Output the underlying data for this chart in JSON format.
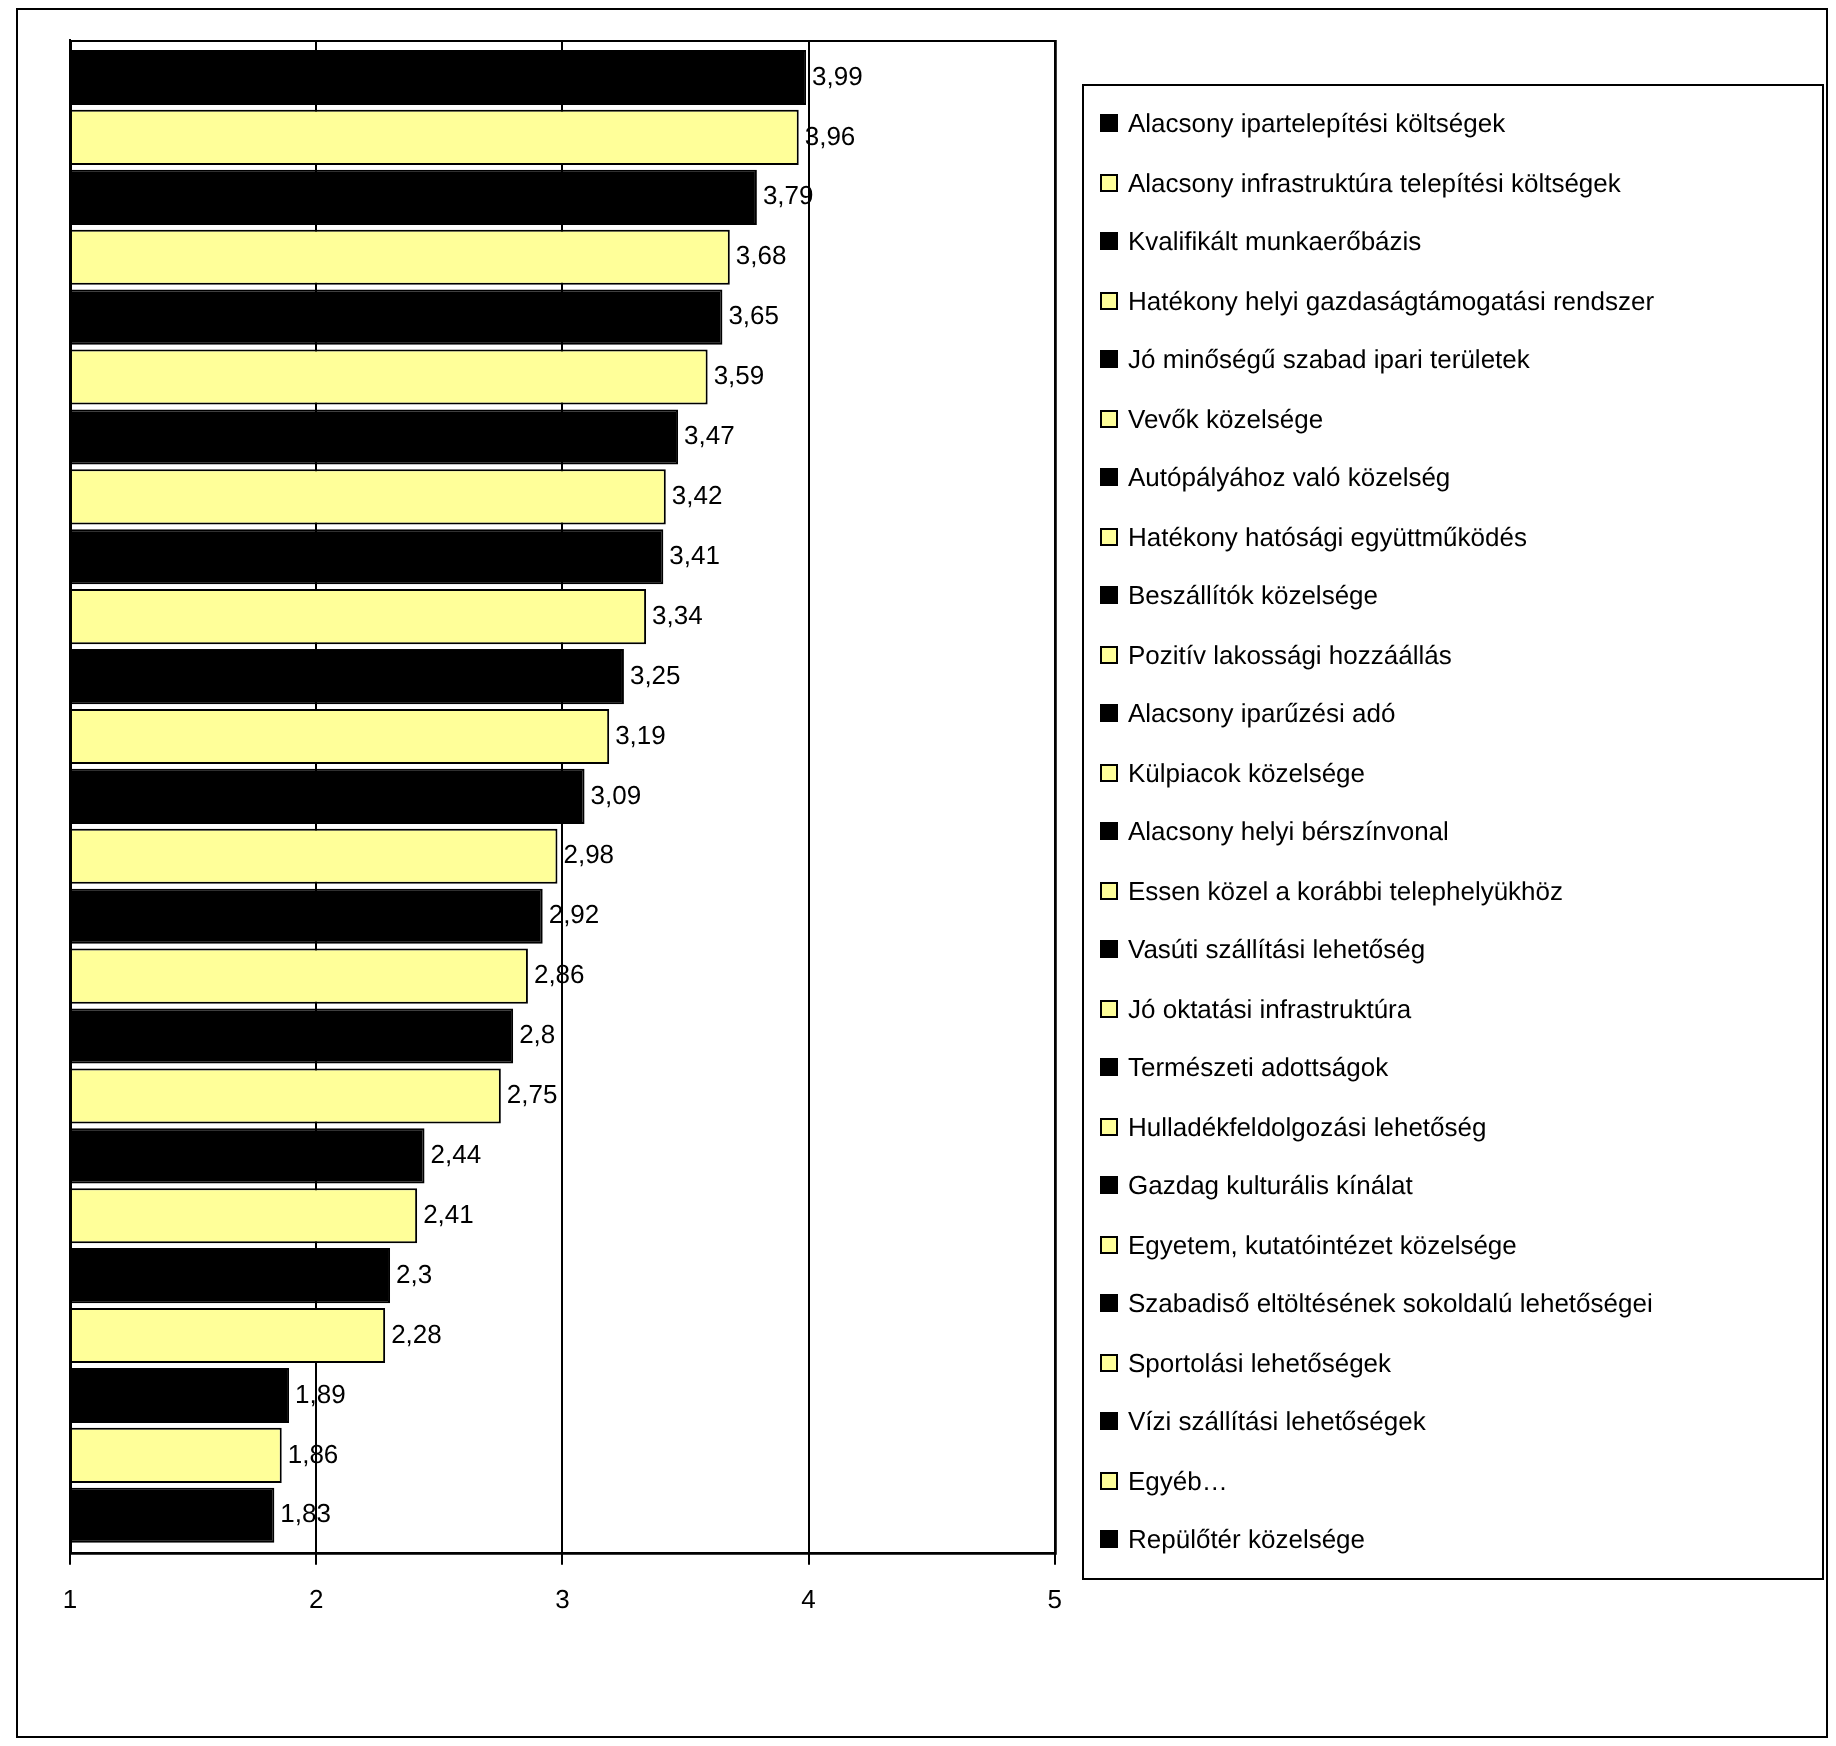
{
  "chart_data": {
    "type": "bar",
    "orientation": "horizontal",
    "categories": [
      null
    ],
    "xlim": [
      1,
      5
    ],
    "xticks": [
      1,
      2,
      3,
      4,
      5
    ],
    "grid": "x",
    "legend": "right",
    "tick_labels": "x",
    "series": [
      {
        "name": "Alacsony ipartelepítési költségek",
        "color": "#000000",
        "values": [
          3.99
        ],
        "value_labels": [
          "3,99"
        ]
      },
      {
        "name": "Alacsony infrastruktúra telepítési költségek",
        "color": "#ffff99",
        "values": [
          3.96
        ],
        "value_labels": [
          "3,96"
        ]
      },
      {
        "name": "Kvalifikált munkaerőbázis",
        "color": "#000000",
        "values": [
          3.79
        ],
        "value_labels": [
          "3,79"
        ]
      },
      {
        "name": "Hatékony helyi gazdaságtámogatási rendszer",
        "color": "#ffff99",
        "values": [
          3.68
        ],
        "value_labels": [
          "3,68"
        ]
      },
      {
        "name": "Jó minőségű szabad ipari területek",
        "color": "#000000",
        "values": [
          3.65
        ],
        "value_labels": [
          "3,65"
        ]
      },
      {
        "name": "Vevők közelsége",
        "color": "#ffff99",
        "values": [
          3.59
        ],
        "value_labels": [
          "3,59"
        ]
      },
      {
        "name": "Autópályához való közelség",
        "color": "#000000",
        "values": [
          3.47
        ],
        "value_labels": [
          "3,47"
        ]
      },
      {
        "name": "Hatékony hatósági együttműködés",
        "color": "#ffff99",
        "values": [
          3.42
        ],
        "value_labels": [
          "3,42"
        ]
      },
      {
        "name": "Beszállítók közelsége",
        "color": "#000000",
        "values": [
          3.41
        ],
        "value_labels": [
          "3,41"
        ]
      },
      {
        "name": "Pozitív lakossági hozzáállás",
        "color": "#ffff99",
        "values": [
          3.34
        ],
        "value_labels": [
          "3,34"
        ]
      },
      {
        "name": "Alacsony iparűzési adó",
        "color": "#000000",
        "values": [
          3.25
        ],
        "value_labels": [
          "3,25"
        ]
      },
      {
        "name": "Külpiacok közelsége",
        "color": "#ffff99",
        "values": [
          3.19
        ],
        "value_labels": [
          "3,19"
        ]
      },
      {
        "name": "Alacsony helyi bérszínvonal",
        "color": "#000000",
        "values": [
          3.09
        ],
        "value_labels": [
          "3,09"
        ]
      },
      {
        "name": "Essen közel a korábbi telephelyükhöz",
        "color": "#ffff99",
        "values": [
          2.98
        ],
        "value_labels": [
          "2,98"
        ]
      },
      {
        "name": "Vasúti szállítási lehetőség",
        "color": "#000000",
        "values": [
          2.92
        ],
        "value_labels": [
          "2,92"
        ]
      },
      {
        "name": "Jó oktatási infrastruktúra",
        "color": "#ffff99",
        "values": [
          2.86
        ],
        "value_labels": [
          "2,86"
        ]
      },
      {
        "name": "Természeti adottságok",
        "color": "#000000",
        "values": [
          2.8
        ],
        "value_labels": [
          "2,8"
        ]
      },
      {
        "name": "Hulladékfeldolgozási lehetőség",
        "color": "#ffff99",
        "values": [
          2.75
        ],
        "value_labels": [
          "2,75"
        ]
      },
      {
        "name": "Gazdag kulturális kínálat",
        "color": "#000000",
        "values": [
          2.44
        ],
        "value_labels": [
          "2,44"
        ]
      },
      {
        "name": "Egyetem, kutatóintézet közelsége",
        "color": "#ffff99",
        "values": [
          2.41
        ],
        "value_labels": [
          "2,41"
        ]
      },
      {
        "name": "Szabadiső eltöltésének sokoldalú lehetőségei",
        "color": "#000000",
        "values": [
          2.3
        ],
        "value_labels": [
          "2,3"
        ]
      },
      {
        "name": "Sportolási lehetőségek",
        "color": "#ffff99",
        "values": [
          2.28
        ],
        "value_labels": [
          "2,28"
        ]
      },
      {
        "name": "Vízi szállítási lehetőségek",
        "color": "#000000",
        "values": [
          1.89
        ],
        "value_labels": [
          "1,89"
        ]
      },
      {
        "name": "Egyéb…",
        "color": "#ffff99",
        "values": [
          1.86
        ],
        "value_labels": [
          "1,86"
        ]
      },
      {
        "name": "Repülőtér közelsége",
        "color": "#000000",
        "values": [
          1.83
        ],
        "value_labels": [
          "1,83"
        ]
      }
    ]
  }
}
